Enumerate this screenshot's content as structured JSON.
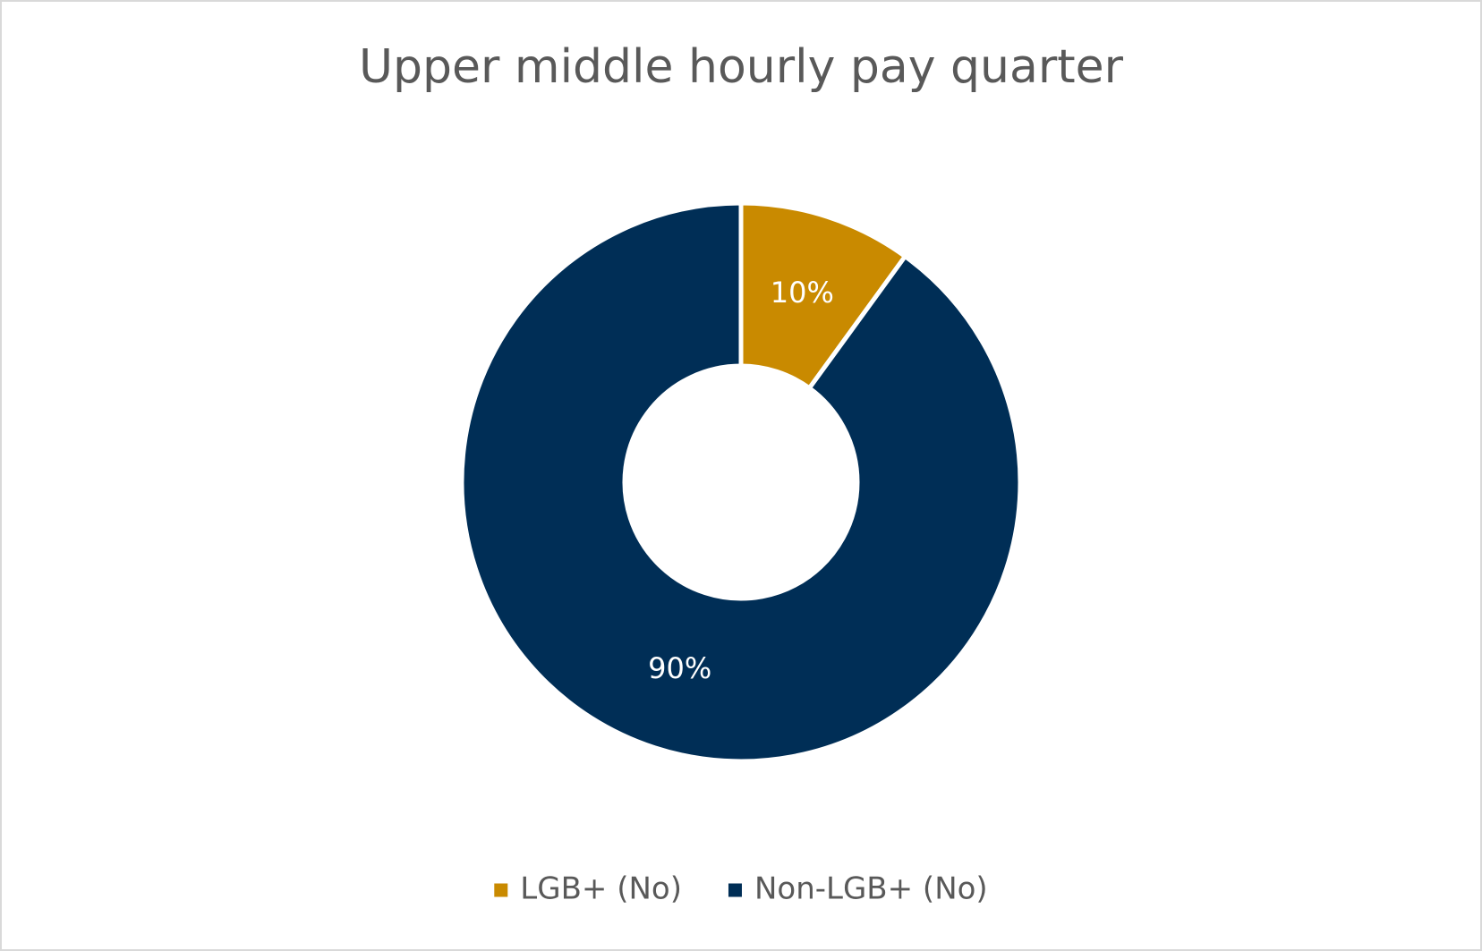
{
  "chart_data": {
    "type": "pie",
    "title": "Upper middle hourly pay quarter",
    "categories": [
      "LGB+ (No)",
      "Non-LGB+ (No)"
    ],
    "values": [
      10,
      90
    ],
    "value_labels": [
      "10%",
      "90%"
    ],
    "colors": [
      "#c98a00",
      "#002e56"
    ],
    "donut": true,
    "legend": "bottom"
  }
}
